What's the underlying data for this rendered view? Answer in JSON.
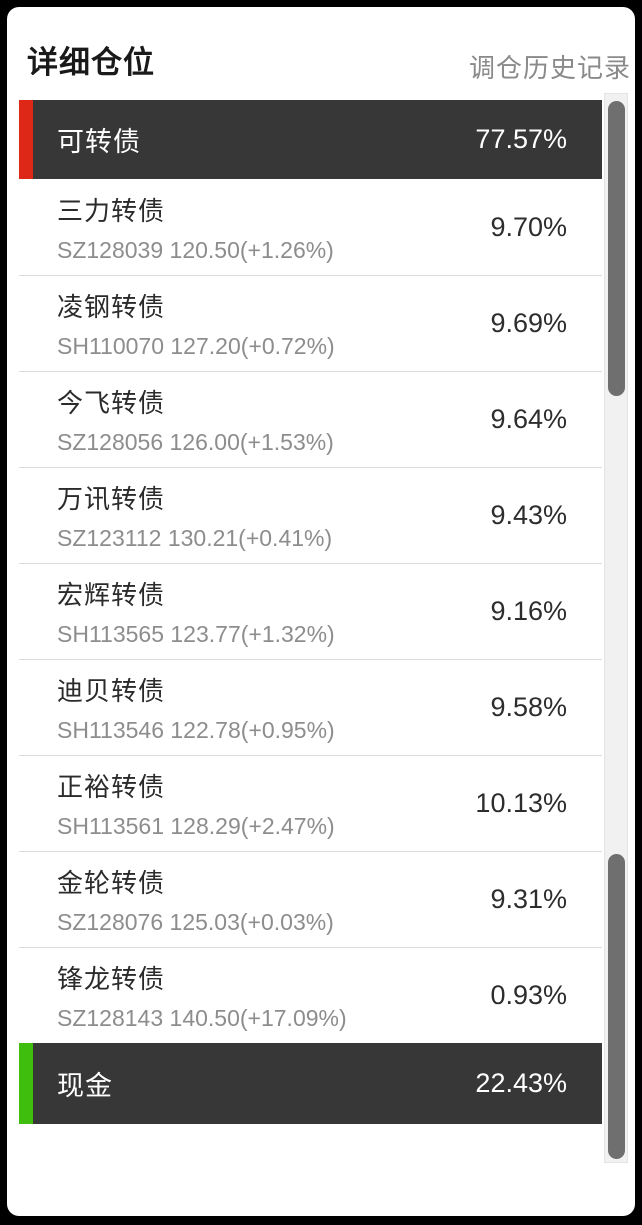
{
  "header": {
    "title": "详细仓位",
    "history_link": "调仓历史记录"
  },
  "group_header": {
    "label": "可转债",
    "percent": "77.57%",
    "accent_color": "#dd2817"
  },
  "holdings": [
    {
      "name": "三力转债",
      "detail": "SZ128039 120.50(+1.26%)",
      "percent": "9.70%"
    },
    {
      "name": "凌钢转债",
      "detail": "SH110070 127.20(+0.72%)",
      "percent": "9.69%"
    },
    {
      "name": "今飞转债",
      "detail": "SZ128056 126.00(+1.53%)",
      "percent": "9.64%"
    },
    {
      "name": "万讯转债",
      "detail": "SZ123112 130.21(+0.41%)",
      "percent": "9.43%"
    },
    {
      "name": "宏辉转债",
      "detail": "SH113565 123.77(+1.32%)",
      "percent": "9.16%"
    },
    {
      "name": "迪贝转债",
      "detail": "SH113546 122.78(+0.95%)",
      "percent": "9.58%"
    },
    {
      "name": "正裕转债",
      "detail": "SH113561 128.29(+2.47%)",
      "percent": "10.13%"
    },
    {
      "name": "金轮转债",
      "detail": "SZ128076 125.03(+0.03%)",
      "percent": "9.31%"
    },
    {
      "name": "锋龙转债",
      "detail": "SZ128143 140.50(+17.09%)",
      "percent": "0.93%"
    }
  ],
  "group_footer": {
    "label": "现金",
    "percent": "22.43%",
    "accent_color": "#3fbe0d"
  },
  "colors": {
    "group_row_bg": "#373737",
    "divider": "#dcdcdc",
    "scroll_track": "#f1f1f1",
    "scroll_thumb": "#6f6f6f",
    "link_text": "#8a8a8a"
  }
}
